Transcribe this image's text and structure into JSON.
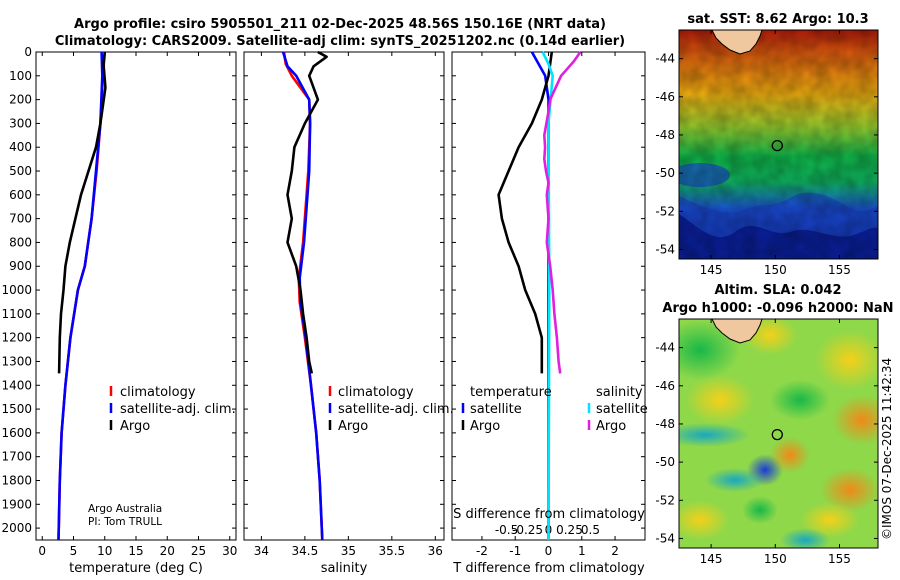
{
  "header": {
    "title_line1": "Argo profile: csiro 5905501_211 02-Dec-2025 48.56S 150.16E (NRT data)",
    "title_line2": "Climatology: CARS2009. Satellite-adj clim: synTS_20251202.nc (0.14d earlier)"
  },
  "watermark": "©IMOS 07-Dec-2025 11:42:34",
  "credit": {
    "line1": "Argo Australia",
    "line2": "PI: Tom TRULL"
  },
  "colors": {
    "climatology": "#ff0000",
    "satellite_adj": "#0000ff",
    "argo": "#000000",
    "sat_temp": "#0000ff",
    "sat_sal": "#00e5ff",
    "argo_sal": "#e020e0"
  },
  "chart_data": [
    {
      "type": "line",
      "id": "temperature_profile",
      "xlabel": "temperature (deg C)",
      "ylabel": "",
      "xlim": [
        -1,
        31
      ],
      "ylim": [
        2050,
        0
      ],
      "xticks": [
        0,
        5,
        10,
        15,
        20,
        25,
        30
      ],
      "yticks": [
        0,
        100,
        200,
        300,
        400,
        500,
        600,
        700,
        800,
        900,
        1000,
        1100,
        1200,
        1300,
        1400,
        1500,
        1600,
        1700,
        1800,
        1900,
        2000
      ],
      "legend": [
        "climatology",
        "satellite-adj. clim.",
        "Argo"
      ],
      "series": [
        {
          "name": "climatology",
          "color": "#ff0000",
          "points": [
            [
              10.0,
              0
            ],
            [
              9.7,
              100
            ],
            [
              9.3,
              300
            ],
            [
              8.7,
              500
            ],
            [
              7.9,
              700
            ],
            [
              6.8,
              900
            ],
            [
              5.7,
              1000
            ],
            [
              4.5,
              1200
            ],
            [
              3.7,
              1400
            ],
            [
              3.1,
              1600
            ],
            [
              2.8,
              1800
            ],
            [
              2.6,
              2050
            ]
          ]
        },
        {
          "name": "satellite-adj. clim.",
          "color": "#0000ff",
          "points": [
            [
              9.5,
              0
            ],
            [
              9.6,
              100
            ],
            [
              9.3,
              300
            ],
            [
              8.6,
              500
            ],
            [
              7.9,
              700
            ],
            [
              6.8,
              900
            ],
            [
              5.7,
              1000
            ],
            [
              4.5,
              1200
            ],
            [
              3.7,
              1400
            ],
            [
              3.1,
              1600
            ],
            [
              2.8,
              1800
            ],
            [
              2.6,
              2050
            ]
          ]
        },
        {
          "name": "Argo",
          "color": "#000000",
          "points": [
            [
              10.0,
              0
            ],
            [
              9.8,
              50
            ],
            [
              10.1,
              150
            ],
            [
              9.3,
              300
            ],
            [
              8.6,
              400
            ],
            [
              7.4,
              500
            ],
            [
              6.2,
              600
            ],
            [
              5.3,
              700
            ],
            [
              4.4,
              800
            ],
            [
              3.7,
              900
            ],
            [
              3.4,
              1000
            ],
            [
              3.0,
              1100
            ],
            [
              2.8,
              1200
            ],
            [
              2.7,
              1350
            ]
          ]
        }
      ]
    },
    {
      "type": "line",
      "id": "salinity_profile",
      "xlabel": "salinity",
      "xlim": [
        33.8,
        36.1
      ],
      "ylim": [
        2050,
        0
      ],
      "xticks": [
        34,
        34.5,
        35,
        35.5,
        36
      ],
      "legend": [
        "climatology",
        "satellite-adj. clim.",
        "Argo"
      ],
      "series": [
        {
          "name": "climatology",
          "color": "#ff0000",
          "points": [
            [
              34.26,
              0
            ],
            [
              34.28,
              50
            ],
            [
              34.35,
              100
            ],
            [
              34.55,
              200
            ],
            [
              34.56,
              300
            ],
            [
              34.54,
              500
            ],
            [
              34.52,
              600
            ],
            [
              34.48,
              800
            ],
            [
              34.43,
              950
            ],
            [
              34.44,
              1050
            ],
            [
              34.5,
              1200
            ],
            [
              34.57,
              1400
            ],
            [
              34.63,
              1600
            ],
            [
              34.67,
              1800
            ],
            [
              34.7,
              2050
            ]
          ]
        },
        {
          "name": "satellite-adj. clim.",
          "color": "#0000ff",
          "points": [
            [
              34.25,
              0
            ],
            [
              34.3,
              60
            ],
            [
              34.4,
              100
            ],
            [
              34.55,
              200
            ],
            [
              34.56,
              300
            ],
            [
              34.55,
              500
            ],
            [
              34.53,
              600
            ],
            [
              34.49,
              800
            ],
            [
              34.44,
              950
            ],
            [
              34.45,
              1050
            ],
            [
              34.51,
              1200
            ],
            [
              34.57,
              1400
            ],
            [
              34.63,
              1600
            ],
            [
              34.67,
              1800
            ],
            [
              34.7,
              2050
            ]
          ]
        },
        {
          "name": "Argo",
          "color": "#000000",
          "points": [
            [
              34.65,
              0
            ],
            [
              34.75,
              20
            ],
            [
              34.6,
              60
            ],
            [
              34.55,
              100
            ],
            [
              34.65,
              200
            ],
            [
              34.5,
              300
            ],
            [
              34.38,
              400
            ],
            [
              34.35,
              500
            ],
            [
              34.3,
              600
            ],
            [
              34.35,
              700
            ],
            [
              34.3,
              800
            ],
            [
              34.4,
              900
            ],
            [
              34.45,
              1000
            ],
            [
              34.48,
              1100
            ],
            [
              34.52,
              1200
            ],
            [
              34.55,
              1300
            ],
            [
              34.58,
              1350
            ]
          ]
        }
      ]
    },
    {
      "type": "line",
      "id": "difference_profile",
      "xlabel": "T difference from climatology",
      "xlabel_top": "S difference from climatology",
      "xlim": [
        -2.9,
        2.9
      ],
      "ylim": [
        2050,
        0
      ],
      "xticks": [
        -2,
        -1,
        0,
        1,
        2
      ],
      "xticks_top": [
        -0.5,
        -0.25,
        0,
        0.25,
        0.5
      ],
      "xtick_labels_top": [
        "-0.5",
        "-0.25",
        "0",
        "0.25",
        "0.5"
      ],
      "legend_headers": {
        "temperature": "temperature",
        "salinity": "salinity"
      },
      "legend_temperature": [
        "satellite",
        "Argo"
      ],
      "legend_salinity": [
        "satellite",
        "Argo"
      ],
      "series": [
        {
          "name": "temperature satellite",
          "color": "#0000ff",
          "points": [
            [
              -0.5,
              0
            ],
            [
              -0.1,
              100
            ],
            [
              0,
              200
            ],
            [
              0,
              2050
            ]
          ]
        },
        {
          "name": "temperature Argo",
          "color": "#000000",
          "points": [
            [
              0.1,
              0
            ],
            [
              0.0,
              100
            ],
            [
              -0.2,
              200
            ],
            [
              -0.5,
              300
            ],
            [
              -0.9,
              400
            ],
            [
              -1.2,
              500
            ],
            [
              -1.5,
              600
            ],
            [
              -1.4,
              700
            ],
            [
              -1.2,
              800
            ],
            [
              -0.9,
              900
            ],
            [
              -0.7,
              1000
            ],
            [
              -0.4,
              1100
            ],
            [
              -0.2,
              1200
            ],
            [
              -0.2,
              1350
            ]
          ]
        },
        {
          "name": "salinity satellite",
          "color": "#00e5ff",
          "points": [
            [
              -0.07,
              0
            ],
            [
              0.0,
              50
            ],
            [
              0.05,
              100
            ],
            [
              0.0,
              300
            ],
            [
              0.01,
              1000
            ],
            [
              0.0,
              2050
            ]
          ]
        },
        {
          "name": "salinity Argo",
          "color": "#e020e0",
          "points": [
            [
              0.38,
              0
            ],
            [
              0.3,
              40
            ],
            [
              0.15,
              100
            ],
            [
              0.02,
              200
            ],
            [
              0.0,
              250
            ],
            [
              -0.05,
              350
            ],
            [
              -0.04,
              400
            ],
            [
              -0.05,
              450
            ],
            [
              -0.03,
              500
            ],
            [
              0.0,
              550
            ],
            [
              -0.02,
              600
            ],
            [
              0.0,
              700
            ],
            [
              -0.02,
              800
            ],
            [
              0.02,
              900
            ],
            [
              0.05,
              1000
            ],
            [
              0.07,
              1100
            ],
            [
              0.1,
              1200
            ],
            [
              0.12,
              1300
            ],
            [
              0.14,
              1350
            ]
          ]
        }
      ]
    },
    {
      "type": "heatmap",
      "id": "sst_map",
      "title": "sat. SST: 8.62 Argo: 10.3",
      "xlim": [
        142.5,
        158
      ],
      "ylim": [
        -54.5,
        -42.5
      ],
      "xticks": [
        145,
        150,
        155
      ],
      "yticks": [
        -44,
        -46,
        -48,
        -50,
        -52,
        -54
      ],
      "marker": {
        "lon": 150.16,
        "lat": -48.56
      }
    },
    {
      "type": "heatmap",
      "id": "sla_map",
      "title_line1": "Altim. SLA: 0.042",
      "title_line2": "Argo h1000: -0.096 h2000: NaN",
      "xlim": [
        142.5,
        158
      ],
      "ylim": [
        -54.5,
        -42.5
      ],
      "xticks": [
        145,
        150,
        155
      ],
      "yticks": [
        -44,
        -46,
        -48,
        -50,
        -52,
        -54
      ],
      "marker": {
        "lon": 150.16,
        "lat": -48.56
      }
    }
  ]
}
